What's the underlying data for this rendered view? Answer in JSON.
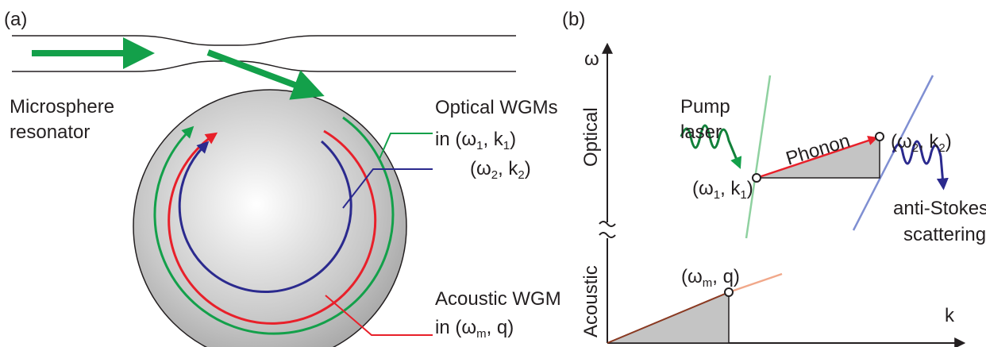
{
  "panel_a": {
    "label": "(a)",
    "resonator_label": [
      "Microsphere",
      "resonator"
    ],
    "optical": {
      "title": "Optical WGMs",
      "in": "in",
      "mode1": [
        "(ω",
        "1",
        ", k",
        "1",
        ")"
      ],
      "mode2": [
        "(ω",
        "2",
        ", k",
        "2",
        ")"
      ]
    },
    "acoustic": {
      "title": "Acoustic WGM",
      "in": "in",
      "mode": [
        "(ω",
        "m",
        ", q)"
      ]
    }
  },
  "panel_b": {
    "label": "(b)",
    "y_axis": "ω",
    "x_axis": "k",
    "optical_region": "Optical",
    "acoustic_region": "Acoustic",
    "pump": [
      "Pump",
      "laser"
    ],
    "phonon": "Phonon",
    "point1": [
      "(ω",
      "1",
      ", k",
      "1",
      ")"
    ],
    "point2": [
      "(ω",
      "2",
      ", k",
      "2",
      ")"
    ],
    "acoustic_point": [
      "(ω",
      "m",
      ", q)"
    ],
    "scattering": [
      "anti-Stokes",
      "scattering"
    ]
  }
}
